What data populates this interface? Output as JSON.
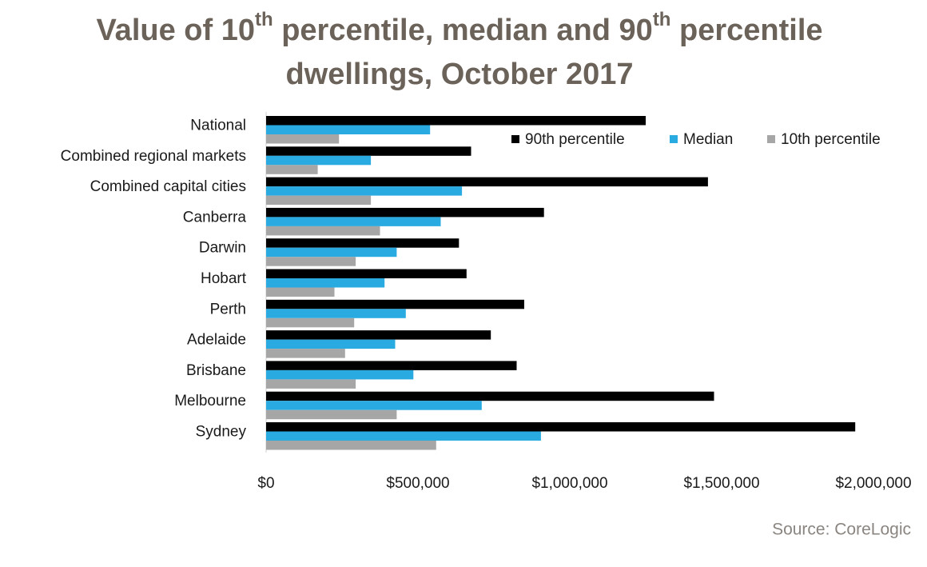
{
  "chart_data": {
    "type": "bar",
    "orientation": "horizontal",
    "title_lines": [
      [
        "Value of 10",
        "th",
        " percentile, median and 90",
        "th",
        " percentile"
      ],
      [
        "dwellings, October 2017"
      ]
    ],
    "source": "Source: CoreLogic",
    "categories": [
      "National",
      "Combined regional markets",
      "Combined capital cities",
      "Canberra",
      "Darwin",
      "Hobart",
      "Perth",
      "Adelaide",
      "Brisbane",
      "Melbourne",
      "Sydney"
    ],
    "series": [
      {
        "name": "90th percentile",
        "color": "#000000",
        "values": [
          1250000,
          675000,
          1455000,
          915000,
          635000,
          660000,
          850000,
          740000,
          825000,
          1475000,
          1940000
        ]
      },
      {
        "name": "Median",
        "color": "#29abe2",
        "values": [
          540000,
          345000,
          645000,
          575000,
          430000,
          390000,
          460000,
          425000,
          485000,
          710000,
          905000
        ]
      },
      {
        "name": "10th percentile",
        "color": "#a6a6a6",
        "values": [
          240000,
          170000,
          345000,
          375000,
          295000,
          225000,
          290000,
          260000,
          295000,
          430000,
          560000
        ]
      }
    ],
    "xlim": [
      0,
      2000000
    ],
    "xticks": [
      {
        "value": 0,
        "label": "$0"
      },
      {
        "value": 500000,
        "label": "$500,000"
      },
      {
        "value": 1000000,
        "label": "$1,000,000"
      },
      {
        "value": 1500000,
        "label": "$1,500,000"
      },
      {
        "value": 2000000,
        "label": "$2,000,000"
      }
    ],
    "legend": "upper right"
  }
}
